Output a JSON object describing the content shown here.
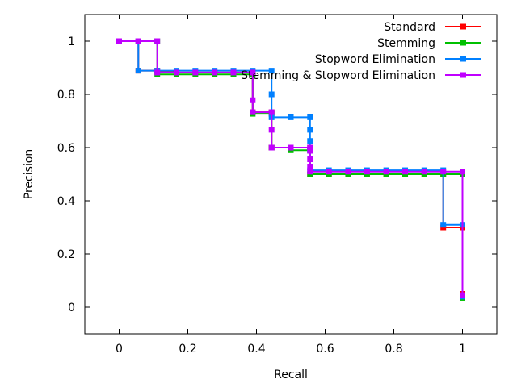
{
  "chart_data": {
    "type": "line",
    "title": "",
    "xlabel": "Recall",
    "ylabel": "Precision",
    "xlim": [
      -0.1,
      1.1
    ],
    "ylim": [
      -0.1,
      1.1
    ],
    "xticks": [
      0,
      0.2,
      0.4,
      0.6,
      0.8,
      1
    ],
    "yticks": [
      0,
      0.2,
      0.4,
      0.6,
      0.8,
      1
    ],
    "xtick_labels": [
      "0",
      "0.2",
      "0.4",
      "0.6",
      "0.8",
      "1"
    ],
    "ytick_labels": [
      "0",
      "0.2",
      "0.4",
      "0.6",
      "0.8",
      "1"
    ],
    "grid": false,
    "legend": "top-right",
    "series": [
      {
        "name": "Standard",
        "color": "#ff0000",
        "points": [
          [
            0,
            1
          ],
          [
            0.056,
            1
          ],
          [
            0.056,
            0.889
          ],
          [
            0.111,
            0.889
          ],
          [
            0.167,
            0.882
          ],
          [
            0.222,
            0.882
          ],
          [
            0.278,
            0.882
          ],
          [
            0.333,
            0.882
          ],
          [
            0.389,
            0.882
          ],
          [
            0.389,
            0.733
          ],
          [
            0.444,
            0.733
          ],
          [
            0.444,
            0.6
          ],
          [
            0.5,
            0.6
          ],
          [
            0.556,
            0.6
          ],
          [
            0.556,
            0.5
          ],
          [
            0.611,
            0.5
          ],
          [
            0.667,
            0.5
          ],
          [
            0.722,
            0.5
          ],
          [
            0.778,
            0.5
          ],
          [
            0.833,
            0.5
          ],
          [
            0.889,
            0.5
          ],
          [
            0.944,
            0.5
          ],
          [
            0.944,
            0.3
          ],
          [
            1,
            0.3
          ],
          [
            1,
            0.05
          ]
        ]
      },
      {
        "name": "Stemming",
        "color": "#00c000",
        "points": [
          [
            0,
            1
          ],
          [
            0.111,
            1
          ],
          [
            0.111,
            0.875
          ],
          [
            0.167,
            0.875
          ],
          [
            0.222,
            0.875
          ],
          [
            0.278,
            0.875
          ],
          [
            0.333,
            0.875
          ],
          [
            0.389,
            0.875
          ],
          [
            0.389,
            0.727
          ],
          [
            0.444,
            0.727
          ],
          [
            0.444,
            0.6
          ],
          [
            0.5,
            0.6
          ],
          [
            0.5,
            0.59
          ],
          [
            0.556,
            0.59
          ],
          [
            0.556,
            0.5
          ],
          [
            0.611,
            0.5
          ],
          [
            0.667,
            0.5
          ],
          [
            0.722,
            0.5
          ],
          [
            0.778,
            0.5
          ],
          [
            0.833,
            0.5
          ],
          [
            0.889,
            0.5
          ],
          [
            0.944,
            0.5
          ],
          [
            1,
            0.5
          ],
          [
            1,
            0.035
          ]
        ]
      },
      {
        "name": "Stopword Elimination",
        "color": "#0080ff",
        "points": [
          [
            0,
            1
          ],
          [
            0.056,
            1
          ],
          [
            0.056,
            0.889
          ],
          [
            0.111,
            0.889
          ],
          [
            0.167,
            0.889
          ],
          [
            0.222,
            0.889
          ],
          [
            0.278,
            0.889
          ],
          [
            0.333,
            0.889
          ],
          [
            0.389,
            0.889
          ],
          [
            0.444,
            0.889
          ],
          [
            0.444,
            0.8
          ],
          [
            0.444,
            0.714
          ],
          [
            0.5,
            0.714
          ],
          [
            0.556,
            0.714
          ],
          [
            0.556,
            0.667
          ],
          [
            0.556,
            0.625
          ],
          [
            0.556,
            0.588
          ],
          [
            0.556,
            0.515
          ],
          [
            0.611,
            0.515
          ],
          [
            0.667,
            0.515
          ],
          [
            0.722,
            0.515
          ],
          [
            0.778,
            0.515
          ],
          [
            0.833,
            0.515
          ],
          [
            0.889,
            0.515
          ],
          [
            0.944,
            0.515
          ],
          [
            0.944,
            0.31
          ],
          [
            1,
            0.31
          ],
          [
            1,
            0.04
          ]
        ]
      },
      {
        "name": "Stemming & Stopword Elimination",
        "color": "#c000ff",
        "points": [
          [
            0,
            1
          ],
          [
            0.056,
            1
          ],
          [
            0.111,
            1
          ],
          [
            0.111,
            0.882
          ],
          [
            0.167,
            0.882
          ],
          [
            0.222,
            0.882
          ],
          [
            0.278,
            0.882
          ],
          [
            0.333,
            0.882
          ],
          [
            0.389,
            0.882
          ],
          [
            0.389,
            0.778
          ],
          [
            0.389,
            0.733
          ],
          [
            0.444,
            0.733
          ],
          [
            0.444,
            0.667
          ],
          [
            0.444,
            0.6
          ],
          [
            0.5,
            0.6
          ],
          [
            0.556,
            0.6
          ],
          [
            0.556,
            0.588
          ],
          [
            0.556,
            0.556
          ],
          [
            0.556,
            0.526
          ],
          [
            0.556,
            0.51
          ],
          [
            0.611,
            0.51
          ],
          [
            0.667,
            0.51
          ],
          [
            0.722,
            0.51
          ],
          [
            0.778,
            0.51
          ],
          [
            0.833,
            0.51
          ],
          [
            0.889,
            0.51
          ],
          [
            0.944,
            0.51
          ],
          [
            1,
            0.51
          ],
          [
            1,
            0.045
          ]
        ]
      }
    ]
  }
}
